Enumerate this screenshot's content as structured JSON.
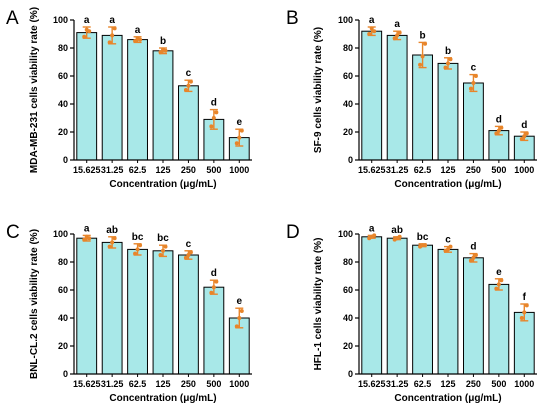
{
  "chart_data": [
    {
      "panel_label": "A",
      "type": "bar",
      "categories": [
        "15.625",
        "31.25",
        "62.5",
        "125",
        "250",
        "500",
        "1000"
      ],
      "values": [
        91,
        89,
        86,
        78,
        53,
        29,
        16
      ],
      "error": [
        4,
        6,
        2,
        2,
        4,
        7,
        6
      ],
      "points": [
        [
          88,
          93,
          92
        ],
        [
          84,
          89,
          94
        ],
        [
          85,
          87,
          86
        ],
        [
          77,
          79,
          78
        ],
        [
          50,
          53,
          56
        ],
        [
          24,
          30,
          34
        ],
        [
          12,
          16,
          21
        ]
      ],
      "significance": [
        "a",
        "a",
        "a",
        "b",
        "c",
        "d",
        "e"
      ],
      "xlabel": "Concentration (μg/mL)",
      "ylabel": "MDA-MB-231 cells viability rate (%)",
      "ylim": [
        0,
        100
      ],
      "yticks": [
        0,
        20,
        40,
        60,
        80,
        100
      ],
      "grid": false,
      "bar_color": "#a8e8e8",
      "point_color": "#e8852a"
    },
    {
      "panel_label": "B",
      "type": "bar",
      "categories": [
        "15.625",
        "31.25",
        "62.5",
        "125",
        "250",
        "500",
        "1000"
      ],
      "values": [
        92,
        89,
        75,
        69,
        55,
        21,
        17
      ],
      "error": [
        3,
        3,
        9,
        4,
        6,
        3,
        3
      ],
      "points": [
        [
          90,
          94,
          92
        ],
        [
          87,
          89,
          91
        ],
        [
          68,
          74,
          83
        ],
        [
          66,
          69,
          72
        ],
        [
          51,
          55,
          60
        ],
        [
          19,
          21,
          23
        ],
        [
          15,
          17,
          19
        ]
      ],
      "significance": [
        "a",
        "a",
        "b",
        "b",
        "c",
        "d",
        "d"
      ],
      "xlabel": "Concentration (μg/mL)",
      "ylabel": "SF-9 cells viability rate (%)",
      "ylim": [
        0,
        100
      ],
      "yticks": [
        0,
        20,
        40,
        60,
        80,
        100
      ],
      "grid": false,
      "bar_color": "#a8e8e8",
      "point_color": "#e8852a"
    },
    {
      "panel_label": "C",
      "type": "bar",
      "categories": [
        "15.625",
        "31.25",
        "62.5",
        "125",
        "250",
        "500",
        "1000"
      ],
      "values": [
        97,
        94,
        89,
        88,
        85,
        62,
        40
      ],
      "error": [
        2,
        4,
        4,
        4,
        3,
        5,
        7
      ],
      "points": [
        [
          96,
          98,
          97
        ],
        [
          91,
          94,
          97
        ],
        [
          86,
          89,
          92
        ],
        [
          85,
          88,
          91
        ],
        [
          83,
          85,
          87
        ],
        [
          58,
          62,
          66
        ],
        [
          34,
          40,
          45
        ]
      ],
      "significance": [
        "a",
        "ab",
        "bc",
        "bc",
        "c",
        "d",
        "e"
      ],
      "xlabel": "Concentration (μg/mL)",
      "ylabel": "BNL-CL.2 cells viability rate (%)",
      "ylim": [
        0,
        100
      ],
      "yticks": [
        0,
        20,
        40,
        60,
        80,
        100
      ],
      "grid": false,
      "bar_color": "#a8e8e8",
      "point_color": "#e8852a"
    },
    {
      "panel_label": "D",
      "type": "bar",
      "categories": [
        "15.625",
        "31.25",
        "62.5",
        "125",
        "250",
        "500",
        "1000"
      ],
      "values": [
        98,
        97,
        92,
        89,
        83,
        64,
        44
      ],
      "error": [
        1,
        1,
        1,
        2,
        3,
        4,
        6
      ],
      "points": [
        [
          97,
          98,
          99
        ],
        [
          96,
          97,
          98
        ],
        [
          91,
          92,
          92
        ],
        [
          88,
          89,
          91
        ],
        [
          81,
          83,
          85
        ],
        [
          61,
          64,
          67
        ],
        [
          40,
          44,
          49
        ]
      ],
      "significance": [
        "a",
        "ab",
        "bc",
        "c",
        "d",
        "e",
        "f"
      ],
      "xlabel": "Concentration (μg/mL)",
      "ylabel": "HFL-1 cells viability rate (%)",
      "ylim": [
        0,
        100
      ],
      "yticks": [
        0,
        20,
        40,
        60,
        80,
        100
      ],
      "grid": false,
      "bar_color": "#a8e8e8",
      "point_color": "#e8852a"
    }
  ]
}
